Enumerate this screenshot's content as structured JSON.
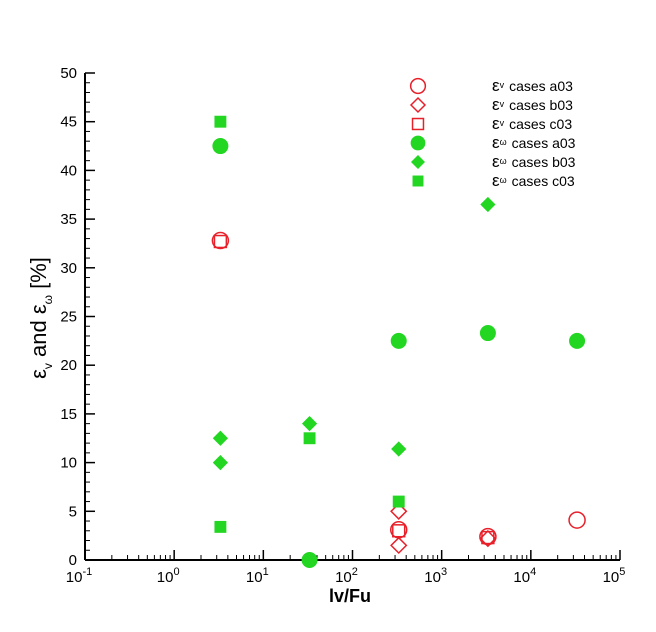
{
  "chart_data": {
    "type": "scatter",
    "title": "",
    "x_scale": "log",
    "xlim": [
      0.1,
      100000
    ],
    "ylim": [
      0,
      50
    ],
    "grid": false,
    "legend_position": "top-right",
    "xlabel": "lv/Fu",
    "ylabel": {
      "sym1": "ε",
      "sub1": "v",
      "mid": " and ",
      "sym2": "ε",
      "sub2": "ω",
      "unit": " [%]"
    },
    "x_ticks": [
      {
        "value": 0.1,
        "base": "10",
        "exp": "-1"
      },
      {
        "value": 1,
        "base": "10",
        "exp": "0"
      },
      {
        "value": 10,
        "base": "10",
        "exp": "1"
      },
      {
        "value": 100,
        "base": "10",
        "exp": "2"
      },
      {
        "value": 1000,
        "base": "10",
        "exp": "3"
      },
      {
        "value": 10000,
        "base": "10",
        "exp": "4"
      },
      {
        "value": 100000,
        "base": "10",
        "exp": "5"
      }
    ],
    "y_ticks": [
      {
        "value": 0,
        "label": "0"
      },
      {
        "value": 5,
        "label": "5"
      },
      {
        "value": 10,
        "label": "10"
      },
      {
        "value": 15,
        "label": "15"
      },
      {
        "value": 20,
        "label": "20"
      },
      {
        "value": 25,
        "label": "25"
      },
      {
        "value": 30,
        "label": "30"
      },
      {
        "value": 35,
        "label": "35"
      },
      {
        "value": 40,
        "label": "40"
      },
      {
        "value": 45,
        "label": "45"
      },
      {
        "value": 50,
        "label": "50"
      }
    ],
    "series": [
      {
        "name": "cases a03",
        "sym": "ε",
        "sub": "v",
        "marker": "circle",
        "filled": false,
        "color": "#e8202a",
        "points": [
          [
            3.3,
            32.8
          ],
          [
            330,
            3.1
          ],
          [
            3300,
            2.4
          ],
          [
            33000,
            4.1
          ]
        ]
      },
      {
        "name": "cases b03",
        "sym": "ε",
        "sub": "v",
        "marker": "diamond",
        "filled": false,
        "color": "#e8202a",
        "points": [
          [
            330,
            5.0
          ],
          [
            330,
            1.5
          ],
          [
            3300,
            2.2
          ]
        ]
      },
      {
        "name": "cases c03",
        "sym": "ε",
        "sub": "v",
        "marker": "square",
        "filled": false,
        "color": "#e8202a",
        "points": [
          [
            3.3,
            32.7
          ],
          [
            330,
            3.0
          ],
          [
            3300,
            2.3
          ]
        ]
      },
      {
        "name": "cases a03",
        "sym": "ε",
        "sub": "ω",
        "marker": "circle",
        "filled": true,
        "color": "#22d622",
        "points": [
          [
            3.3,
            42.5
          ],
          [
            33,
            0
          ],
          [
            330,
            22.5
          ],
          [
            3300,
            23.3
          ],
          [
            33000,
            22.5
          ]
        ]
      },
      {
        "name": "cases b03",
        "sym": "ε",
        "sub": "ω",
        "marker": "diamond",
        "filled": true,
        "color": "#22d622",
        "points": [
          [
            3.3,
            12.5
          ],
          [
            3.3,
            10.0
          ],
          [
            33,
            14.0
          ],
          [
            330,
            11.4
          ],
          [
            3300,
            36.5
          ]
        ]
      },
      {
        "name": "cases c03",
        "sym": "ε",
        "sub": "ω",
        "marker": "square",
        "filled": true,
        "color": "#22d622",
        "points": [
          [
            3.3,
            45.0
          ],
          [
            3.3,
            3.4
          ],
          [
            33,
            12.5
          ],
          [
            330,
            6.0
          ]
        ]
      }
    ]
  }
}
